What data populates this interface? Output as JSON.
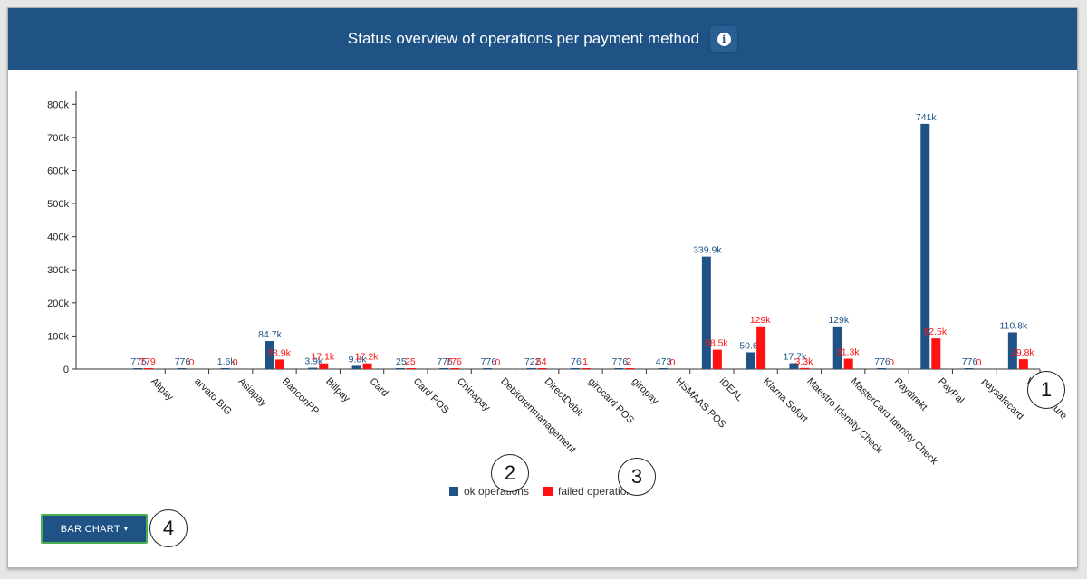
{
  "header": {
    "title": "Status overview of operations per payment method",
    "info_icon": "info-icon"
  },
  "legend": {
    "ok_label": "ok operations",
    "failed_label": "failed operations"
  },
  "colors": {
    "ok": "#1f5386",
    "failed": "#ff1111",
    "header_bg": "#1f5386",
    "button_border": "#4caf50"
  },
  "controls": {
    "chart_type_button": "BAR CHART"
  },
  "markers": [
    "1",
    "2",
    "3",
    "4"
  ],
  "chart_data": {
    "type": "bar",
    "title": "Status overview of operations per payment method",
    "xlabel": "",
    "ylabel": "",
    "ylim": [
      0,
      850000
    ],
    "yticks": [
      0,
      100000,
      200000,
      300000,
      400000,
      500000,
      600000,
      700000,
      800000
    ],
    "ytick_labels": [
      "0",
      "100k",
      "200k",
      "300k",
      "400k",
      "500k",
      "600k",
      "700k",
      "800k"
    ],
    "categories": [
      "Alipay",
      "arvato BIG",
      "Asiapay",
      "BanconPP",
      "Billpay",
      "Card",
      "Card POS",
      "Chinapay",
      "Debitorenmanagement",
      "DirectDebit",
      "girocard POS",
      "giropay",
      "HSMAAS POS",
      "iDEAL",
      "Klarna Sofort",
      "Maestro Identity Check",
      "MasterCard Identity Check",
      "Paydirekt",
      "PayPal",
      "paysafecard",
      "Visa Secure"
    ],
    "series": [
      {
        "name": "ok operations",
        "values": [
          775,
          776,
          1600,
          84700,
          3900,
          9800,
          25,
          776,
          776,
          722,
          76,
          776,
          473,
          339900,
          50600,
          17700,
          129000,
          776,
          741000,
          776,
          110800
        ],
        "labels": [
          "775",
          "776",
          "1.6k",
          "84.7k",
          "3.9k",
          "9.8k",
          "25",
          "776",
          "776",
          "722",
          "76",
          "776",
          "473",
          "339.9k",
          "50.6k",
          "17.7k",
          "129k",
          "776",
          "741k",
          "776",
          "110.8k"
        ]
      },
      {
        "name": "failed operations",
        "values": [
          779,
          0,
          0,
          28900,
          17100,
          17200,
          25,
          776,
          0,
          54,
          1,
          2,
          0,
          58500,
          129000,
          3300,
          31300,
          0,
          92500,
          0,
          29800
        ],
        "labels": [
          "779",
          "0",
          "0",
          "28.9k",
          "17.1k",
          "17.2k",
          "25",
          "776",
          "0",
          "54",
          "1",
          "2",
          "0",
          "58.5k",
          "129k",
          "3.3k",
          "31.3k",
          "0",
          "92.5k",
          "0",
          "29.8k"
        ]
      }
    ]
  }
}
